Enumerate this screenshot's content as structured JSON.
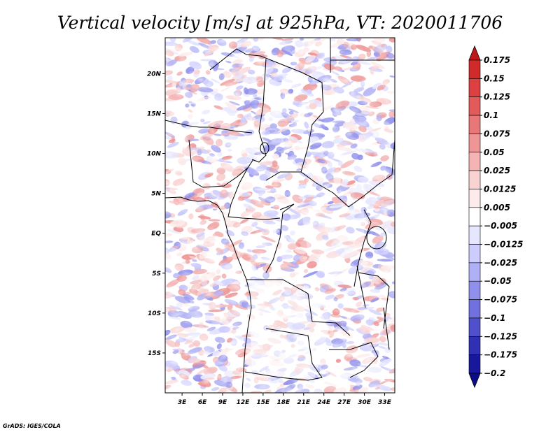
{
  "chart_data": {
    "type": "heatmap",
    "title": "Vertical velocity [m/s] at 925hPa, VT: 2020011706",
    "x_axis": {
      "ticks": [
        3,
        6,
        9,
        12,
        15,
        18,
        21,
        24,
        27,
        30,
        33
      ],
      "tick_labels": [
        "3E",
        "6E",
        "9E",
        "12E",
        "15E",
        "18E",
        "21E",
        "24E",
        "27E",
        "30E",
        "33E"
      ],
      "range": [
        0.5,
        34.5
      ]
    },
    "y_axis": {
      "ticks": [
        20,
        15,
        10,
        5,
        0,
        -5,
        -10,
        -15
      ],
      "tick_labels": [
        "20N",
        "15N",
        "10N",
        "5N",
        "EQ",
        "5S",
        "10S",
        "15S"
      ],
      "range": [
        -20,
        24.5
      ]
    },
    "colorbar": {
      "levels": [
        "0.175",
        "0.15",
        "0.125",
        "0.1",
        "0.075",
        "0.05",
        "0.025",
        "0.0125",
        "0.005",
        "−0.005",
        "−0.0125",
        "−0.025",
        "−0.05",
        "−0.075",
        "−0.1",
        "−0.125",
        "−0.175",
        "−0.2"
      ],
      "colors": [
        "#c01818",
        "#d02a2a",
        "#dc4040",
        "#e25a5a",
        "#e87878",
        "#ee9696",
        "#f4b4b4",
        "#f9d2d2",
        "#fdeaea",
        "#ffffff",
        "#e6e6ff",
        "#ccccff",
        "#b0b0f6",
        "#9090ec",
        "#7070de",
        "#5050cc",
        "#3030b4",
        "#18189c",
        "#0c0c8a"
      ]
    },
    "credit": "GrADS: IGES/COLA"
  }
}
